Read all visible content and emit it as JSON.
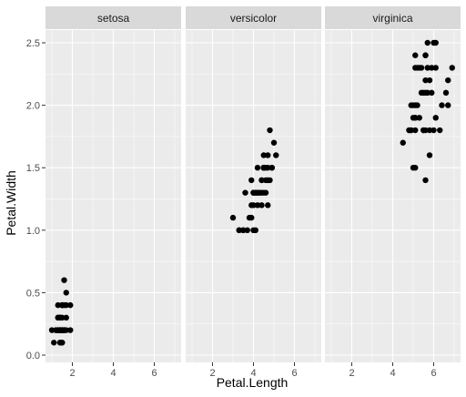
{
  "chart_data": {
    "type": "scatter",
    "xlabel": "Petal.Length",
    "ylabel": "Petal.Width",
    "xlim": [
      1.0,
      7.0
    ],
    "ylim": [
      0.0,
      2.6
    ],
    "x_ticks": [
      2,
      4,
      6
    ],
    "y_ticks": [
      0.0,
      0.5,
      1.0,
      1.5,
      2.0,
      2.5
    ],
    "y_tick_labels": [
      "0.0",
      "0.5",
      "1.0",
      "1.5",
      "2.0",
      "2.5"
    ],
    "grid": true,
    "point_color": "#000000",
    "panel_background": "#ebebeb",
    "strip_background": "#d9d9d9",
    "gridline_color": "#ffffff",
    "facets": [
      {
        "label": "setosa",
        "points": [
          [
            1.4,
            0.2
          ],
          [
            1.4,
            0.2
          ],
          [
            1.3,
            0.2
          ],
          [
            1.5,
            0.2
          ],
          [
            1.4,
            0.2
          ],
          [
            1.7,
            0.4
          ],
          [
            1.4,
            0.3
          ],
          [
            1.5,
            0.2
          ],
          [
            1.4,
            0.2
          ],
          [
            1.5,
            0.1
          ],
          [
            1.5,
            0.2
          ],
          [
            1.6,
            0.2
          ],
          [
            1.4,
            0.1
          ],
          [
            1.1,
            0.1
          ],
          [
            1.2,
            0.2
          ],
          [
            1.5,
            0.4
          ],
          [
            1.3,
            0.4
          ],
          [
            1.4,
            0.3
          ],
          [
            1.7,
            0.3
          ],
          [
            1.5,
            0.3
          ],
          [
            1.7,
            0.2
          ],
          [
            1.5,
            0.4
          ],
          [
            1.0,
            0.2
          ],
          [
            1.7,
            0.5
          ],
          [
            1.9,
            0.2
          ],
          [
            1.6,
            0.2
          ],
          [
            1.6,
            0.4
          ],
          [
            1.5,
            0.2
          ],
          [
            1.4,
            0.2
          ],
          [
            1.6,
            0.2
          ],
          [
            1.6,
            0.2
          ],
          [
            1.5,
            0.4
          ],
          [
            1.5,
            0.1
          ],
          [
            1.4,
            0.2
          ],
          [
            1.5,
            0.2
          ],
          [
            1.2,
            0.2
          ],
          [
            1.3,
            0.2
          ],
          [
            1.4,
            0.1
          ],
          [
            1.3,
            0.2
          ],
          [
            1.5,
            0.2
          ],
          [
            1.3,
            0.3
          ],
          [
            1.3,
            0.3
          ],
          [
            1.3,
            0.2
          ],
          [
            1.6,
            0.6
          ],
          [
            1.9,
            0.4
          ],
          [
            1.4,
            0.3
          ],
          [
            1.6,
            0.2
          ],
          [
            1.4,
            0.2
          ],
          [
            1.5,
            0.2
          ],
          [
            1.4,
            0.2
          ]
        ]
      },
      {
        "label": "versicolor",
        "points": [
          [
            4.7,
            1.4
          ],
          [
            4.5,
            1.5
          ],
          [
            4.9,
            1.5
          ],
          [
            4.0,
            1.3
          ],
          [
            4.6,
            1.5
          ],
          [
            4.5,
            1.3
          ],
          [
            4.7,
            1.6
          ],
          [
            3.3,
            1.0
          ],
          [
            4.6,
            1.3
          ],
          [
            3.9,
            1.4
          ],
          [
            3.5,
            1.0
          ],
          [
            4.2,
            1.5
          ],
          [
            4.0,
            1.0
          ],
          [
            4.7,
            1.4
          ],
          [
            3.6,
            1.3
          ],
          [
            4.4,
            1.4
          ],
          [
            4.5,
            1.5
          ],
          [
            4.1,
            1.0
          ],
          [
            4.5,
            1.5
          ],
          [
            3.9,
            1.1
          ],
          [
            4.8,
            1.8
          ],
          [
            4.0,
            1.3
          ],
          [
            4.9,
            1.5
          ],
          [
            4.7,
            1.2
          ],
          [
            4.3,
            1.3
          ],
          [
            4.4,
            1.4
          ],
          [
            4.8,
            1.4
          ],
          [
            5.0,
            1.7
          ],
          [
            4.5,
            1.5
          ],
          [
            3.5,
            1.0
          ],
          [
            3.8,
            1.1
          ],
          [
            3.7,
            1.0
          ],
          [
            3.9,
            1.2
          ],
          [
            5.1,
            1.6
          ],
          [
            4.5,
            1.5
          ],
          [
            4.5,
            1.6
          ],
          [
            4.7,
            1.5
          ],
          [
            4.4,
            1.3
          ],
          [
            4.1,
            1.3
          ],
          [
            4.0,
            1.3
          ],
          [
            4.4,
            1.2
          ],
          [
            4.6,
            1.4
          ],
          [
            4.0,
            1.2
          ],
          [
            3.3,
            1.0
          ],
          [
            4.2,
            1.3
          ],
          [
            4.2,
            1.2
          ],
          [
            4.2,
            1.3
          ],
          [
            4.3,
            1.3
          ],
          [
            3.0,
            1.1
          ],
          [
            4.1,
            1.3
          ]
        ]
      },
      {
        "label": "virginica",
        "points": [
          [
            6.0,
            2.5
          ],
          [
            5.1,
            1.9
          ],
          [
            5.9,
            2.1
          ],
          [
            5.6,
            1.8
          ],
          [
            5.8,
            2.2
          ],
          [
            6.6,
            2.1
          ],
          [
            4.5,
            1.7
          ],
          [
            6.3,
            1.8
          ],
          [
            5.8,
            1.8
          ],
          [
            6.1,
            2.5
          ],
          [
            5.1,
            2.0
          ],
          [
            5.3,
            1.9
          ],
          [
            5.5,
            2.1
          ],
          [
            5.0,
            2.0
          ],
          [
            5.1,
            2.4
          ],
          [
            5.3,
            2.3
          ],
          [
            5.5,
            1.8
          ],
          [
            6.7,
            2.2
          ],
          [
            6.9,
            2.3
          ],
          [
            5.0,
            1.5
          ],
          [
            5.7,
            2.3
          ],
          [
            4.9,
            2.0
          ],
          [
            6.7,
            2.0
          ],
          [
            4.9,
            1.8
          ],
          [
            5.7,
            2.1
          ],
          [
            6.0,
            1.8
          ],
          [
            4.8,
            1.8
          ],
          [
            4.9,
            1.8
          ],
          [
            5.6,
            2.1
          ],
          [
            5.8,
            1.6
          ],
          [
            6.1,
            1.9
          ],
          [
            6.4,
            2.0
          ],
          [
            5.6,
            2.2
          ],
          [
            5.1,
            1.5
          ],
          [
            5.6,
            1.4
          ],
          [
            6.1,
            2.3
          ],
          [
            5.6,
            2.4
          ],
          [
            5.5,
            1.8
          ],
          [
            4.8,
            1.8
          ],
          [
            5.4,
            2.1
          ],
          [
            5.6,
            2.4
          ],
          [
            5.1,
            2.3
          ],
          [
            5.1,
            1.9
          ],
          [
            5.9,
            2.3
          ],
          [
            5.7,
            2.5
          ],
          [
            5.2,
            2.3
          ],
          [
            5.0,
            1.9
          ],
          [
            5.2,
            2.0
          ],
          [
            5.4,
            2.3
          ],
          [
            5.1,
            1.8
          ]
        ]
      }
    ]
  }
}
